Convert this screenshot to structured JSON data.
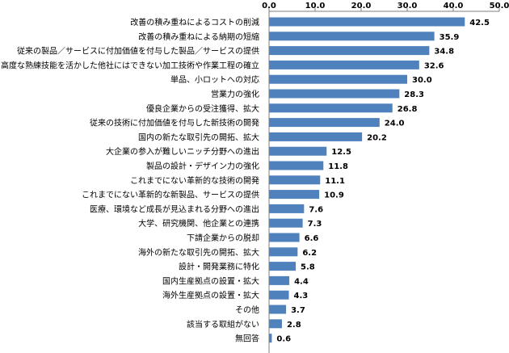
{
  "chart_data": {
    "type": "bar",
    "orientation": "horizontal",
    "title": "",
    "xlabel": "",
    "ylabel": "",
    "xlim": [
      0,
      50
    ],
    "x_ticks": [
      "0.0",
      "10.0",
      "20.0",
      "30.0",
      "40.0",
      "50.0"
    ],
    "tick_values": [
      0,
      10,
      20,
      30,
      40,
      50
    ],
    "grid": false,
    "legend": "none",
    "bar_color": "#4f81bd",
    "axis_color": "#7f7f7f",
    "categories": [
      "改善の積み重ねによるコストの削減",
      "改善の積み重ねによる納期の短縮",
      "従来の製品／サービスに付加価値を付与した製品／サービスの提供",
      "高度な熟練技能を活かした他社にはできない加工技術や作業工程の確立",
      "単品、小ロットへの対応",
      "営業力の強化",
      "優良企業からの受注獲得、拡大",
      "従来の技術に付加価値を付与した新技術の開発",
      "国内の新たな取引先の開拓、拡大",
      "大企業の参入が難しいニッチ分野への進出",
      "製品の設計・デザイン力の強化",
      "これまでにない革新的な技術の開発",
      "これまでにない革新的な新製品、サービスの提供",
      "医療、環境など成長が見込まれる分野への進出",
      "大学、研究機関、他企業との連携",
      "下請企業からの脱却",
      "海外の新たな取引先の開拓、拡大",
      "設計・開発業務に特化",
      "国内生産拠点の設置・拡大",
      "海外生産拠点の設置・拡大",
      "その他",
      "該当する取組がない",
      "無回答"
    ],
    "values": [
      42.5,
      35.9,
      34.8,
      32.6,
      30.0,
      28.3,
      26.8,
      24.0,
      20.2,
      12.5,
      11.8,
      11.1,
      10.9,
      7.6,
      7.3,
      6.6,
      6.2,
      5.8,
      4.4,
      4.3,
      3.7,
      2.8,
      0.6
    ],
    "value_labels": [
      "42.5",
      "35.9",
      "34.8",
      "32.6",
      "30.0",
      "28.3",
      "26.8",
      "24.0",
      "20.2",
      "12.5",
      "11.8",
      "11.1",
      "10.9",
      "7.6",
      "7.3",
      "6.6",
      "6.2",
      "5.8",
      "4.4",
      "4.3",
      "3.7",
      "2.8",
      "0.6"
    ]
  }
}
